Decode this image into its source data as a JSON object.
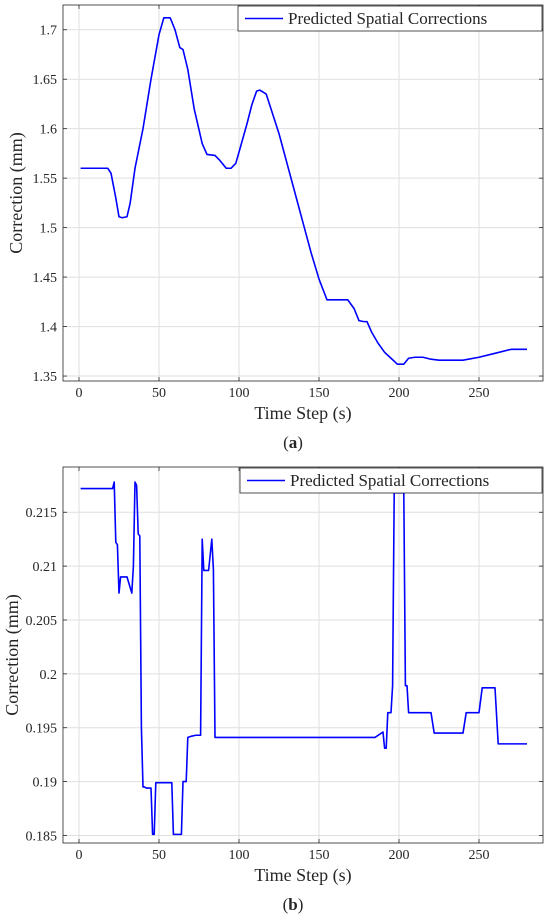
{
  "chart_data": [
    {
      "type": "line",
      "panel_label": "a",
      "xlabel": "Time Step (s)",
      "ylabel": "Correction (mm)",
      "xlim": [
        -10,
        290
      ],
      "ylim": [
        1.345,
        1.725
      ],
      "xticks": [
        0,
        50,
        100,
        150,
        200,
        250
      ],
      "yticks": [
        1.35,
        1.4,
        1.45,
        1.5,
        1.55,
        1.6,
        1.65,
        1.7
      ],
      "grid": true,
      "legend_position": "top-right",
      "series": [
        {
          "name": "Predicted Spatial Corrections",
          "color": "#0000ff",
          "x": [
            1,
            10,
            18,
            20,
            23,
            25,
            27,
            30,
            32,
            35,
            40,
            45,
            50,
            53,
            57,
            60,
            63,
            65,
            68,
            72,
            77,
            80,
            85,
            88,
            92,
            95,
            98,
            101,
            105,
            108,
            111,
            113,
            117,
            120,
            125,
            130,
            135,
            140,
            145,
            150,
            155,
            160,
            165,
            168,
            172,
            175,
            178,
            180,
            183,
            187,
            191,
            195,
            199,
            201,
            203,
            206,
            210,
            215,
            220,
            225,
            230,
            240,
            250,
            260,
            270,
            280
          ],
          "y": [
            1.56,
            1.56,
            1.56,
            1.555,
            1.53,
            1.511,
            1.51,
            1.511,
            1.525,
            1.56,
            1.6,
            1.65,
            1.695,
            1.712,
            1.712,
            1.7,
            1.682,
            1.68,
            1.66,
            1.62,
            1.585,
            1.574,
            1.573,
            1.568,
            1.56,
            1.56,
            1.565,
            1.582,
            1.605,
            1.624,
            1.638,
            1.639,
            1.635,
            1.62,
            1.595,
            1.565,
            1.535,
            1.505,
            1.475,
            1.448,
            1.427,
            1.427,
            1.427,
            1.427,
            1.418,
            1.406,
            1.405,
            1.405,
            1.394,
            1.383,
            1.374,
            1.368,
            1.362,
            1.362,
            1.362,
            1.368,
            1.369,
            1.369,
            1.367,
            1.366,
            1.366,
            1.366,
            1.369,
            1.373,
            1.377,
            1.377
          ]
        }
      ]
    },
    {
      "type": "line",
      "panel_label": "b",
      "xlabel": "Time Step (s)",
      "ylabel": "Correction (mm)",
      "xlim": [
        -10,
        290
      ],
      "ylim": [
        0.1843,
        0.2192
      ],
      "xticks": [
        0,
        50,
        100,
        150,
        200,
        250
      ],
      "yticks": [
        0.185,
        0.19,
        0.195,
        0.2,
        0.205,
        0.21,
        0.215
      ],
      "grid": true,
      "legend_position": "top-right",
      "series": [
        {
          "name": "Predicted Spatial Corrections",
          "color": "#0000ff",
          "x": [
            1,
            21,
            22,
            23,
            24,
            25,
            26,
            27,
            30,
            33,
            34,
            35,
            36,
            37,
            38,
            39,
            40,
            41,
            42,
            45,
            46,
            47,
            48,
            49,
            50,
            55,
            58,
            59,
            60,
            61,
            62,
            64,
            65,
            66,
            67,
            68,
            70,
            73,
            76,
            77,
            78,
            79,
            81,
            83,
            84,
            85,
            86,
            185,
            190,
            191,
            192,
            193,
            195,
            196,
            197,
            198,
            199,
            203,
            204,
            205,
            206,
            208,
            220,
            222,
            240,
            242,
            250,
            252,
            260,
            262,
            280
          ],
          "y": [
            0.2172,
            0.2172,
            0.2178,
            0.2122,
            0.212,
            0.2075,
            0.209,
            0.209,
            0.209,
            0.2075,
            0.21,
            0.2178,
            0.2175,
            0.213,
            0.2128,
            0.195,
            0.1895,
            0.1895,
            0.1894,
            0.1894,
            0.1851,
            0.1851,
            0.1899,
            0.1899,
            0.1899,
            0.1899,
            0.1899,
            0.1851,
            0.1851,
            0.1851,
            0.1851,
            0.1851,
            0.19,
            0.19,
            0.19,
            0.1941,
            0.1942,
            0.1943,
            0.1943,
            0.2125,
            0.2096,
            0.2096,
            0.2096,
            0.2125,
            0.2097,
            0.1941,
            0.1941,
            0.1941,
            0.1946,
            0.1931,
            0.1931,
            0.1964,
            0.1964,
            0.1989,
            0.2168,
            0.2168,
            0.2168,
            0.2168,
            0.1989,
            0.1989,
            0.1964,
            0.1964,
            0.1964,
            0.1945,
            0.1945,
            0.1964,
            0.1964,
            0.1987,
            0.1987,
            0.1935,
            0.1935
          ]
        }
      ]
    }
  ]
}
